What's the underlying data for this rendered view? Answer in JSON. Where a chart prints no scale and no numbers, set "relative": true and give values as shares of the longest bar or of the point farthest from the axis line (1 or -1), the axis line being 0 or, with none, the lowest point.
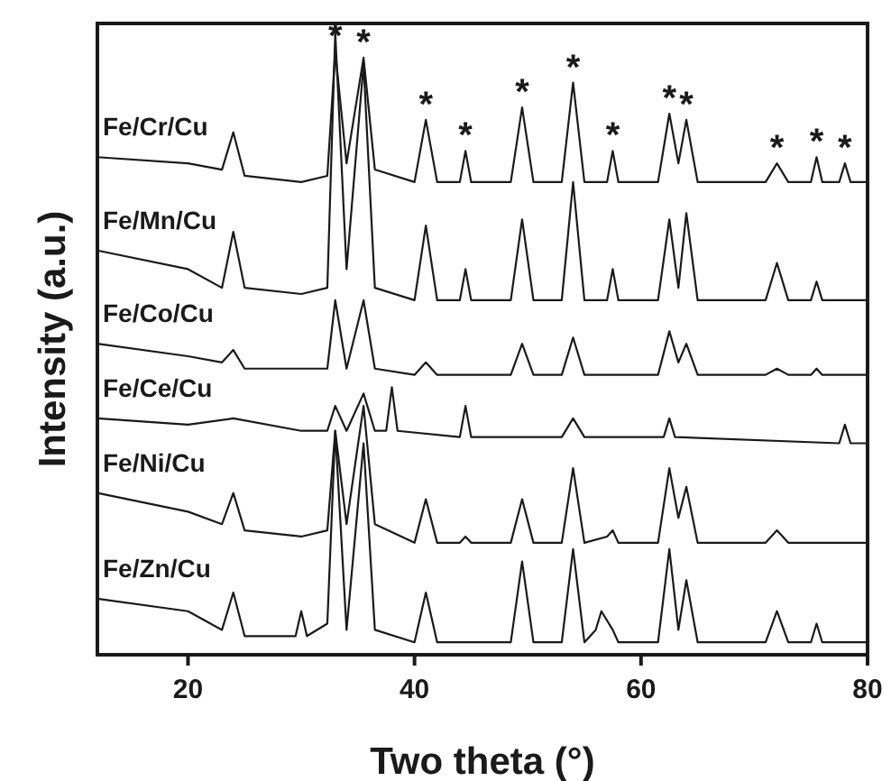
{
  "chart_data": {
    "type": "line",
    "relative": true,
    "xlabel": "Two theta (°)",
    "ylabel": "Intensity (a.u.)",
    "xlim": [
      12,
      80
    ],
    "xticks": [
      20,
      40,
      60,
      80
    ],
    "marker": "none",
    "line_style": "solid",
    "series": [
      {
        "name": "Fe/Cr/Cu",
        "color": "#1a1a1a",
        "x": [
          12,
          20,
          23,
          24,
          25,
          30,
          32.3,
          33,
          34,
          35.5,
          36.5,
          40,
          41,
          42,
          44,
          44.5,
          45,
          48.5,
          49.5,
          50.5,
          53,
          54,
          55,
          57,
          57.5,
          58,
          61.5,
          62.5,
          63.3,
          64,
          65,
          71,
          72,
          73,
          75,
          75.5,
          76,
          77.5,
          78,
          78.5,
          80
        ],
        "values": [
          0.8,
          0.79,
          0.78,
          0.84,
          0.77,
          0.76,
          0.77,
          0.97,
          0.79,
          0.96,
          0.78,
          0.76,
          0.86,
          0.76,
          0.76,
          0.81,
          0.76,
          0.76,
          0.88,
          0.76,
          0.76,
          0.92,
          0.76,
          0.76,
          0.81,
          0.76,
          0.76,
          0.87,
          0.79,
          0.86,
          0.76,
          0.76,
          0.79,
          0.76,
          0.76,
          0.8,
          0.76,
          0.76,
          0.79,
          0.76,
          0.76
        ]
      },
      {
        "name": "Fe/Mn/Cu",
        "color": "#1a1a1a",
        "x": [
          12,
          20,
          23,
          24,
          25,
          30,
          32.3,
          33,
          34,
          35.5,
          36.5,
          40,
          41,
          42,
          44,
          44.5,
          45,
          48.5,
          49.5,
          50.5,
          53,
          54,
          55,
          57,
          57.5,
          58,
          61.5,
          62.5,
          63.3,
          64,
          65,
          71,
          72,
          73,
          75,
          75.5,
          76,
          80
        ],
        "values": [
          0.65,
          0.62,
          0.59,
          0.68,
          0.59,
          0.58,
          0.59,
          1.0,
          0.62,
          0.95,
          0.59,
          0.57,
          0.69,
          0.57,
          0.57,
          0.62,
          0.57,
          0.57,
          0.7,
          0.57,
          0.57,
          0.76,
          0.57,
          0.57,
          0.62,
          0.57,
          0.57,
          0.7,
          0.59,
          0.71,
          0.57,
          0.57,
          0.63,
          0.57,
          0.57,
          0.6,
          0.57,
          0.57
        ]
      },
      {
        "name": "Fe/Co/Cu",
        "color": "#1a1a1a",
        "x": [
          12,
          20,
          23,
          24,
          25,
          30,
          32.3,
          33,
          34,
          35.5,
          36.5,
          40,
          41,
          42,
          48.5,
          49.5,
          50.5,
          53,
          54,
          55,
          61.5,
          62.5,
          63.3,
          64,
          65,
          71,
          72,
          73,
          75,
          75.5,
          76,
          80
        ],
        "values": [
          0.5,
          0.48,
          0.47,
          0.49,
          0.46,
          0.46,
          0.46,
          0.57,
          0.46,
          0.57,
          0.46,
          0.45,
          0.47,
          0.45,
          0.45,
          0.5,
          0.45,
          0.45,
          0.51,
          0.45,
          0.45,
          0.52,
          0.47,
          0.5,
          0.45,
          0.45,
          0.46,
          0.45,
          0.45,
          0.46,
          0.45,
          0.45
        ]
      },
      {
        "name": "Fe/Ce/Cu",
        "color": "#1a1a1a",
        "x": [
          12,
          20,
          24,
          30,
          32.3,
          33,
          34,
          35.5,
          36.5,
          37.5,
          38,
          38.5,
          44,
          44.5,
          45,
          53,
          54,
          55,
          62,
          62.5,
          63,
          77.5,
          78,
          78.5,
          80
        ],
        "values": [
          0.38,
          0.37,
          0.38,
          0.36,
          0.36,
          0.4,
          0.36,
          0.42,
          0.36,
          0.36,
          0.43,
          0.36,
          0.35,
          0.4,
          0.35,
          0.35,
          0.38,
          0.35,
          0.35,
          0.38,
          0.35,
          0.34,
          0.37,
          0.34,
          0.34
        ]
      },
      {
        "name": "Fe/Ni/Cu",
        "color": "#1a1a1a",
        "x": [
          12,
          20,
          23,
          24,
          25,
          30,
          32.3,
          33,
          34,
          35.5,
          36.5,
          40,
          41,
          42,
          44,
          44.5,
          45,
          48.5,
          49.5,
          50.5,
          53,
          54,
          55,
          57,
          57.5,
          58,
          61.5,
          62.5,
          63.3,
          64,
          65,
          71,
          72,
          73,
          75,
          75.5,
          76,
          80
        ],
        "values": [
          0.26,
          0.23,
          0.21,
          0.26,
          0.2,
          0.19,
          0.2,
          0.36,
          0.21,
          0.4,
          0.21,
          0.18,
          0.25,
          0.18,
          0.18,
          0.19,
          0.18,
          0.18,
          0.25,
          0.18,
          0.18,
          0.3,
          0.18,
          0.19,
          0.2,
          0.18,
          0.18,
          0.3,
          0.22,
          0.27,
          0.18,
          0.18,
          0.2,
          0.18,
          0.18,
          0.18,
          0.18,
          0.18
        ]
      },
      {
        "name": "Fe/Zn/Cu",
        "color": "#1a1a1a",
        "x": [
          12,
          20,
          23,
          24,
          25,
          29.5,
          30,
          30.5,
          32.3,
          33,
          34,
          35.5,
          36.5,
          40,
          41,
          42,
          48.5,
          49.5,
          50.5,
          53,
          54,
          55,
          56,
          56.5,
          57.5,
          58,
          61.5,
          62.5,
          63.3,
          64,
          65,
          71,
          72,
          73,
          75,
          75.5,
          76,
          80
        ],
        "values": [
          0.09,
          0.07,
          0.04,
          0.1,
          0.03,
          0.03,
          0.07,
          0.03,
          0.05,
          0.36,
          0.04,
          0.34,
          0.04,
          0.02,
          0.1,
          0.02,
          0.02,
          0.15,
          0.02,
          0.02,
          0.17,
          0.02,
          0.04,
          0.07,
          0.04,
          0.02,
          0.02,
          0.17,
          0.04,
          0.12,
          0.02,
          0.02,
          0.07,
          0.02,
          0.02,
          0.05,
          0.02,
          0.02
        ]
      }
    ],
    "annotations": [
      {
        "text": "*",
        "x": 33,
        "y": 0.97
      },
      {
        "text": "*",
        "x": 35.5,
        "y": 0.96
      },
      {
        "text": "*",
        "x": 41,
        "y": 0.86
      },
      {
        "text": "*",
        "x": 44.5,
        "y": 0.81
      },
      {
        "text": "*",
        "x": 49.5,
        "y": 0.88
      },
      {
        "text": "*",
        "x": 54,
        "y": 0.92
      },
      {
        "text": "*",
        "x": 57.5,
        "y": 0.81
      },
      {
        "text": "*",
        "x": 62.5,
        "y": 0.87
      },
      {
        "text": "*",
        "x": 64,
        "y": 0.86
      },
      {
        "text": "*",
        "x": 72,
        "y": 0.79
      },
      {
        "text": "*",
        "x": 75.5,
        "y": 0.8
      },
      {
        "text": "*",
        "x": 78,
        "y": 0.79
      }
    ]
  }
}
